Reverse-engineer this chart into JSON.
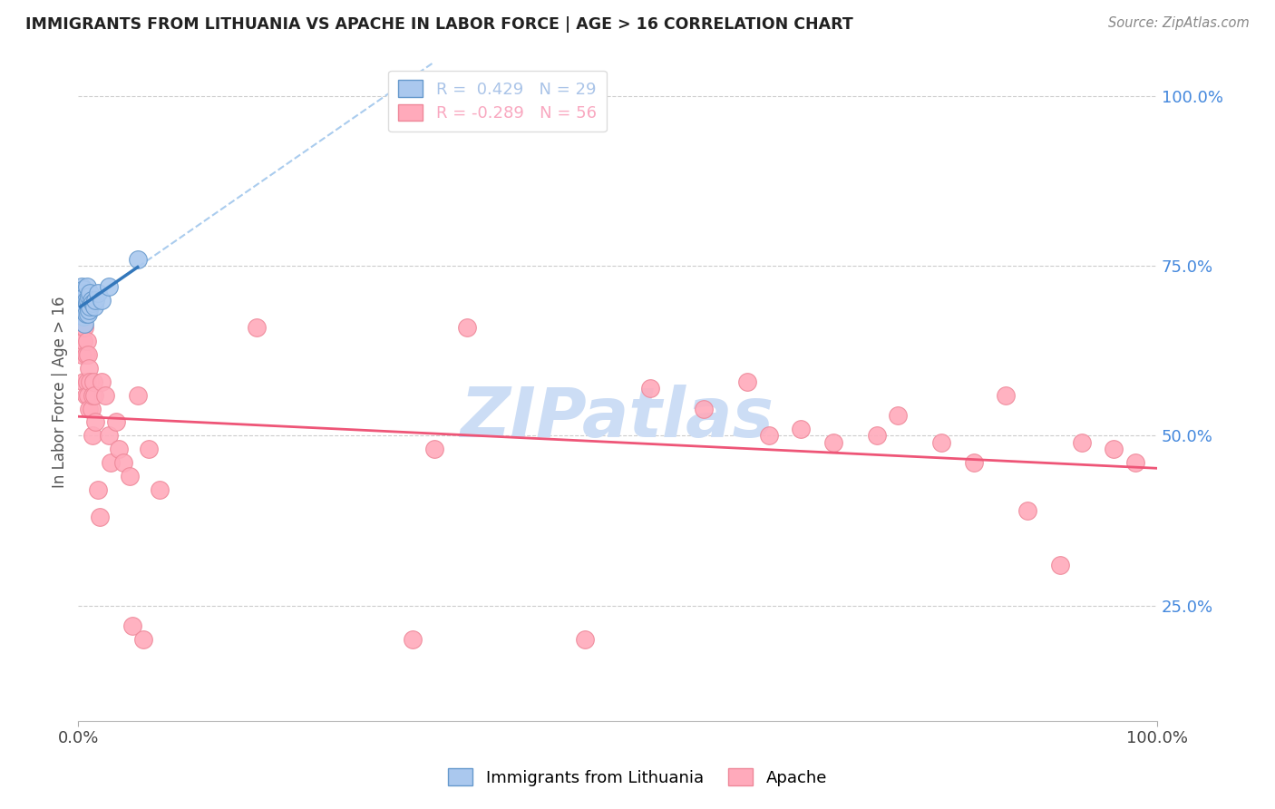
{
  "title": "IMMIGRANTS FROM LITHUANIA VS APACHE IN LABOR FORCE | AGE > 16 CORRELATION CHART",
  "source": "Source: ZipAtlas.com",
  "ylabel": "In Labor Force | Age > 16",
  "y_tick_values": [
    0.25,
    0.5,
    0.75,
    1.0
  ],
  "x_lim": [
    0.0,
    1.0
  ],
  "y_lim": [
    0.08,
    1.05
  ],
  "legend_entries": [
    {
      "label": "R =  0.429   N = 29",
      "color": "#aac4e8"
    },
    {
      "label": "R = -0.289   N = 56",
      "color": "#f9a8c0"
    }
  ],
  "watermark": "ZIPatlas",
  "background_color": "#ffffff",
  "grid_color": "#cccccc",
  "lithuania_x": [
    0.002,
    0.003,
    0.003,
    0.004,
    0.004,
    0.005,
    0.005,
    0.005,
    0.006,
    0.006,
    0.006,
    0.007,
    0.007,
    0.008,
    0.008,
    0.009,
    0.009,
    0.01,
    0.01,
    0.011,
    0.011,
    0.012,
    0.013,
    0.015,
    0.016,
    0.018,
    0.022,
    0.028,
    0.055
  ],
  "lithuania_y": [
    0.695,
    0.72,
    0.7,
    0.71,
    0.69,
    0.715,
    0.695,
    0.675,
    0.705,
    0.685,
    0.665,
    0.7,
    0.68,
    0.72,
    0.695,
    0.7,
    0.68,
    0.705,
    0.685,
    0.71,
    0.69,
    0.7,
    0.695,
    0.69,
    0.7,
    0.71,
    0.7,
    0.72,
    0.76
  ],
  "apache_x": [
    0.003,
    0.004,
    0.005,
    0.005,
    0.006,
    0.007,
    0.007,
    0.008,
    0.008,
    0.009,
    0.009,
    0.01,
    0.01,
    0.011,
    0.012,
    0.013,
    0.013,
    0.014,
    0.015,
    0.016,
    0.018,
    0.02,
    0.022,
    0.025,
    0.028,
    0.03,
    0.035,
    0.038,
    0.042,
    0.048,
    0.05,
    0.055,
    0.06,
    0.065,
    0.075,
    0.165,
    0.31,
    0.33,
    0.36,
    0.47,
    0.53,
    0.58,
    0.62,
    0.64,
    0.67,
    0.7,
    0.74,
    0.76,
    0.8,
    0.83,
    0.86,
    0.88,
    0.91,
    0.93,
    0.96,
    0.98
  ],
  "apache_y": [
    0.62,
    0.66,
    0.64,
    0.58,
    0.66,
    0.62,
    0.56,
    0.64,
    0.58,
    0.62,
    0.56,
    0.6,
    0.54,
    0.58,
    0.54,
    0.56,
    0.5,
    0.58,
    0.56,
    0.52,
    0.42,
    0.38,
    0.58,
    0.56,
    0.5,
    0.46,
    0.52,
    0.48,
    0.46,
    0.44,
    0.22,
    0.56,
    0.2,
    0.48,
    0.42,
    0.66,
    0.2,
    0.48,
    0.66,
    0.2,
    0.57,
    0.54,
    0.58,
    0.5,
    0.51,
    0.49,
    0.5,
    0.53,
    0.49,
    0.46,
    0.56,
    0.39,
    0.31,
    0.49,
    0.48,
    0.46
  ],
  "lith_line_color": "#3377bb",
  "apache_line_color": "#ee5577",
  "lith_dot_color": "#aac8ee",
  "apache_dot_color": "#ffaabb",
  "lith_dot_edge": "#6699cc",
  "apache_dot_edge": "#ee8899",
  "trendline_color": "#aaccee",
  "watermark_color": "#ccddf5",
  "right_label_color": "#4488dd",
  "title_color": "#222222",
  "source_color": "#888888",
  "ylabel_color": "#555555"
}
